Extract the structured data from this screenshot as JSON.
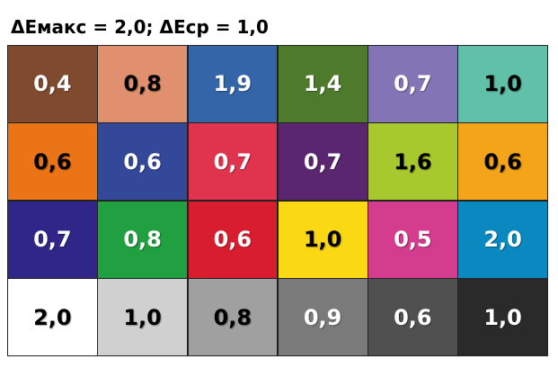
{
  "title": "ΔEмакс = 2,0; ΔEср = 1,0",
  "grid": {
    "rows": [
      [
        {
          "label": "0,4",
          "color": "#7f4a2e",
          "text_color": "#ffffff"
        },
        {
          "label": "0,8",
          "color": "#e0906e",
          "text_color": "#000000"
        },
        {
          "label": "1,9",
          "color": "#3465a8",
          "text_color": "#ffffff"
        },
        {
          "label": "1,4",
          "color": "#4e7a2c",
          "text_color": "#ffffff"
        },
        {
          "label": "0,7",
          "color": "#8375b5",
          "text_color": "#ffffff"
        },
        {
          "label": "1,0",
          "color": "#60c0a8",
          "text_color": "#000000"
        }
      ],
      [
        {
          "label": "0,6",
          "color": "#ea7416",
          "text_color": "#000000"
        },
        {
          "label": "0,6",
          "color": "#34489a",
          "text_color": "#ffffff"
        },
        {
          "label": "0,7",
          "color": "#e0344e",
          "text_color": "#ffffff"
        },
        {
          "label": "0,7",
          "color": "#5a2670",
          "text_color": "#ffffff"
        },
        {
          "label": "1,6",
          "color": "#a8c92e",
          "text_color": "#000000"
        },
        {
          "label": "0,6",
          "color": "#f4a418",
          "text_color": "#000000"
        }
      ],
      [
        {
          "label": "0,7",
          "color": "#30268a",
          "text_color": "#ffffff"
        },
        {
          "label": "0,8",
          "color": "#20a040",
          "text_color": "#ffffff"
        },
        {
          "label": "0,6",
          "color": "#d81e2e",
          "text_color": "#ffffff"
        },
        {
          "label": "1,0",
          "color": "#fad814",
          "text_color": "#000000"
        },
        {
          "label": "0,5",
          "color": "#d43c8e",
          "text_color": "#ffffff"
        },
        {
          "label": "2,0",
          "color": "#0a88c0",
          "text_color": "#ffffff"
        }
      ],
      [
        {
          "label": "2,0",
          "color": "#ffffff",
          "text_color": "#000000"
        },
        {
          "label": "1,0",
          "color": "#d0d0d0",
          "text_color": "#000000"
        },
        {
          "label": "0,8",
          "color": "#a0a0a0",
          "text_color": "#000000"
        },
        {
          "label": "0,9",
          "color": "#7a7a7a",
          "text_color": "#ffffff"
        },
        {
          "label": "0,6",
          "color": "#505050",
          "text_color": "#ffffff"
        },
        {
          "label": "1,0",
          "color": "#2a2a2a",
          "text_color": "#ffffff"
        }
      ]
    ]
  }
}
